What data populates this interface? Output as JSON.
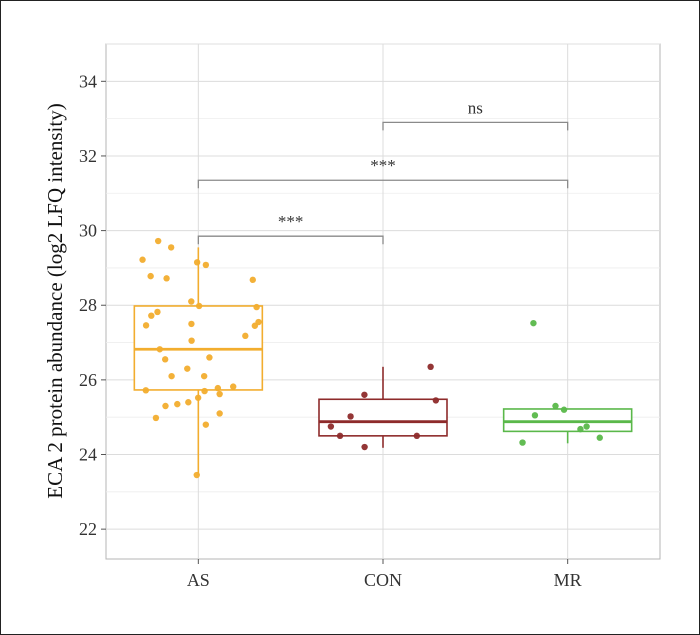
{
  "chart_data": {
    "type": "box",
    "ylabel": "ECA 2 protein abundance (log2 LFQ intensity)",
    "xlabel": "",
    "ylim": [
      21.2,
      35.0
    ],
    "yticks": [
      22,
      24,
      26,
      28,
      30,
      32,
      34
    ],
    "grid": true,
    "categories": [
      "AS",
      "CON",
      "MR"
    ],
    "groups": [
      {
        "name": "AS",
        "color": "#f2ad2e",
        "box": {
          "min": 23.45,
          "q1": 25.73,
          "median": 26.82,
          "q3": 27.98,
          "max": 29.55
        },
        "points": [
          29.15,
          29.08,
          28.78,
          28.72,
          28.1,
          27.98,
          27.46,
          27.18,
          26.6,
          26.3,
          26.1,
          25.82,
          25.78,
          25.72,
          25.52,
          25.3,
          25.1,
          24.98,
          24.8,
          23.45,
          29.72,
          29.22,
          28.68,
          27.95,
          27.72,
          27.5,
          27.45,
          26.82,
          25.4,
          25.7,
          25.62,
          29.55,
          27.82,
          27.55,
          27.05,
          26.55,
          26.1,
          25.35
        ]
      },
      {
        "name": "CON",
        "color": "#8e2b2b",
        "box": {
          "min": 24.18,
          "q1": 24.5,
          "median": 24.88,
          "q3": 25.48,
          "max": 26.35
        },
        "points": [
          24.5,
          24.5,
          24.2,
          25.6,
          24.75,
          25.45,
          25.02,
          26.35
        ]
      },
      {
        "name": "MR",
        "color": "#5ab84a",
        "box": {
          "min": 24.3,
          "q1": 24.62,
          "median": 24.88,
          "q3": 25.22,
          "max": 25.22
        },
        "points": [
          25.2,
          25.05,
          24.68,
          25.3,
          24.45,
          24.75,
          24.32,
          27.52
        ]
      }
    ],
    "comparisons": [
      {
        "from": "AS",
        "to": "CON",
        "label": "***",
        "y": 29.85
      },
      {
        "from": "AS",
        "to": "MR",
        "label": "***",
        "y": 31.35
      },
      {
        "from": "CON",
        "to": "MR",
        "label": "ns",
        "y": 32.9
      }
    ]
  }
}
